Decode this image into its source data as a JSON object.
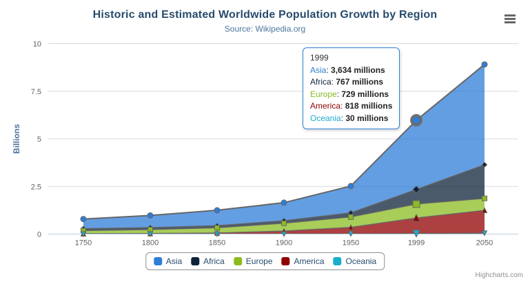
{
  "header": {
    "title": "Historic and Estimated Worldwide Population Growth by Region",
    "subtitle": "Source: Wikipedia.org"
  },
  "chart_data": {
    "type": "area",
    "stacking": "normal",
    "title": "Historic and Estimated Worldwide Population Growth by Region",
    "subtitle": "Source: Wikipedia.org",
    "xlabel": "",
    "ylabel": "Billions",
    "unit": "millions",
    "x": [
      1750,
      1800,
      1850,
      1900,
      1950,
      1999,
      2050
    ],
    "x_tick_labels": [
      "1750",
      "1800",
      "1850",
      "1900",
      "1950",
      "1999",
      "2050"
    ],
    "y_ticks": [
      0,
      2.5,
      5,
      7.5,
      10
    ],
    "y_tick_labels": [
      "0",
      "2.5",
      "5",
      "7.5",
      "10"
    ],
    "ylim": [
      0,
      10
    ],
    "grid": true,
    "legend_position": "bottom-center",
    "series": [
      {
        "name": "Asia",
        "color": "#2f7ed8",
        "marker": "circle",
        "values": [
          502,
          635,
          809,
          947,
          1402,
          3634,
          5268
        ]
      },
      {
        "name": "Africa",
        "color": "#0d233a",
        "marker": "diamond",
        "values": [
          106,
          107,
          111,
          133,
          221,
          767,
          1766
        ]
      },
      {
        "name": "Europe",
        "color": "#8bbc21",
        "marker": "square",
        "values": [
          163,
          203,
          276,
          408,
          547,
          729,
          628
        ]
      },
      {
        "name": "America",
        "color": "#910000",
        "marker": "triangle",
        "values": [
          18,
          31,
          54,
          156,
          339,
          818,
          1201
        ]
      },
      {
        "name": "Oceania",
        "color": "#1aadce",
        "marker": "triangle-down",
        "values": [
          2,
          2,
          2,
          6,
          13,
          30,
          46
        ]
      }
    ],
    "stack_order_bottom_to_top": [
      "Oceania",
      "America",
      "Europe",
      "Africa",
      "Asia"
    ],
    "hover": {
      "x_index": 5,
      "x_label": "1999",
      "series": "Asia"
    },
    "colors": {
      "grid_line": "#d8d8d8",
      "axis_line": "#c0d0e0",
      "series_outline": "#666666",
      "halo": "#6b6b6b",
      "fill_opacity": 0.75
    }
  },
  "tooltip": {
    "header": "1999",
    "rows": [
      {
        "name": "Asia",
        "value": "3,634 millions",
        "color": "#2f7ed8"
      },
      {
        "name": "Africa",
        "value": "767 millions",
        "color": "#0d233a"
      },
      {
        "name": "Europe",
        "value": "729 millions",
        "color": "#8bbc21"
      },
      {
        "name": "America",
        "value": "818 millions",
        "color": "#910000"
      },
      {
        "name": "Oceania",
        "value": "30 millions",
        "color": "#1aadce"
      }
    ]
  },
  "credits": {
    "text": "Highcharts.com"
  }
}
